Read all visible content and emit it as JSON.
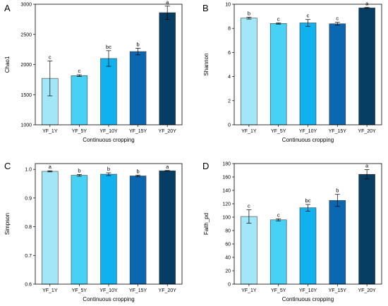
{
  "colors": {
    "bar_fills": [
      "#a3e6f7",
      "#47d1f5",
      "#0fb1ee",
      "#0b67b0",
      "#063d63"
    ],
    "bar_stroke": "#3d3d3d",
    "axis": "#000000"
  },
  "chart_data": [
    {
      "panel": "A",
      "type": "bar",
      "categories": [
        "YF_1Y",
        "YF_5Y",
        "YF_10Y",
        "YF_15Y",
        "YF_20Y"
      ],
      "values": [
        1770,
        1815,
        2100,
        2215,
        2860
      ],
      "errors": [
        290,
        15,
        130,
        55,
        110
      ],
      "labels": [
        "c",
        "c",
        "bc",
        "b",
        "a"
      ],
      "xlabel": "Continuous cropping",
      "ylabel": "Chao1",
      "ylim": [
        1000,
        3000
      ],
      "yticks": [
        1000,
        1500,
        2000,
        2500,
        3000
      ],
      "grid": false
    },
    {
      "panel": "B",
      "type": "bar",
      "categories": [
        "YF_1Y",
        "YF_5Y",
        "YF_10Y",
        "YF_15Y",
        "YF_20Y"
      ],
      "values": [
        8.85,
        8.4,
        8.45,
        8.38,
        9.7
      ],
      "errors": [
        0.08,
        0.05,
        0.28,
        0.12,
        0.05
      ],
      "labels": [
        "b",
        "c",
        "c",
        "c",
        "a"
      ],
      "xlabel": "Continuous cropping",
      "ylabel": "Shannon",
      "ylim": [
        0,
        10
      ],
      "yticks": [
        0,
        2,
        4,
        6,
        8,
        10
      ],
      "grid": false
    },
    {
      "panel": "C",
      "type": "bar",
      "categories": [
        "YF_1Y",
        "YF_5Y",
        "YF_10Y",
        "YF_15Y",
        "YF_20Y"
      ],
      "values": [
        0.993,
        0.979,
        0.983,
        0.977,
        0.995
      ],
      "errors": [
        0.002,
        0.003,
        0.005,
        0.003,
        0.001
      ],
      "labels": [
        "a",
        "b",
        "b",
        "b",
        "a"
      ],
      "xlabel": "Continuous cropping",
      "ylabel": "Simpson",
      "ylim": [
        0.6,
        1.02
      ],
      "yticks": [
        0.6,
        0.7,
        0.8,
        0.9,
        1.0
      ],
      "ytick_labels": [
        "0.6",
        "0.7",
        "0.8",
        "0.9",
        "1.0"
      ],
      "grid": false
    },
    {
      "panel": "D",
      "type": "bar",
      "categories": [
        "YF_1Y",
        "YF_5Y",
        "YF_10Y",
        "YF_15Y",
        "YF_20Y"
      ],
      "values": [
        101,
        96,
        114,
        125,
        164
      ],
      "errors": [
        10,
        1.5,
        5,
        9,
        7
      ],
      "labels": [
        "c",
        "c",
        "bc",
        "b",
        "a"
      ],
      "xlabel": "Continuous cropping",
      "ylabel": "Faith_pd",
      "ylim": [
        0,
        180
      ],
      "yticks": [
        0,
        20,
        40,
        60,
        80,
        100,
        120,
        140,
        160,
        180
      ],
      "grid": false
    }
  ]
}
